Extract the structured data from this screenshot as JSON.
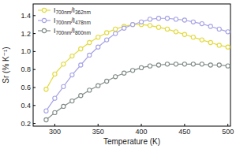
{
  "chart_data": {
    "type": "line",
    "x_label": "Temperature (K)",
    "y_label": "Sr (% K⁻¹)",
    "x": [
      290,
      300,
      310,
      320,
      330,
      340,
      350,
      360,
      370,
      380,
      390,
      400,
      410,
      420,
      430,
      440,
      450,
      460,
      470,
      480,
      490,
      500
    ],
    "series": [
      {
        "name": "I700nm/I362nm",
        "color": "#e2da3c",
        "marker": "circle",
        "values": [
          0.58,
          0.75,
          0.86,
          0.95,
          1.03,
          1.1,
          1.16,
          1.21,
          1.25,
          1.28,
          1.3,
          1.3,
          1.29,
          1.27,
          1.25,
          1.22,
          1.19,
          1.16,
          1.13,
          1.1,
          1.07,
          1.05
        ]
      },
      {
        "name": "I700nm/I478nm",
        "color": "#a7a4e6",
        "marker": "circle",
        "values": [
          0.34,
          0.48,
          0.61,
          0.74,
          0.85,
          0.96,
          1.05,
          1.13,
          1.2,
          1.26,
          1.3,
          1.33,
          1.36,
          1.37,
          1.37,
          1.36,
          1.35,
          1.33,
          1.31,
          1.28,
          1.25,
          1.22
        ]
      },
      {
        "name": "I700nm/I800nm",
        "color": "#808c86",
        "marker": "circle",
        "values": [
          0.24,
          0.32,
          0.39,
          0.45,
          0.51,
          0.57,
          0.62,
          0.67,
          0.72,
          0.76,
          0.79,
          0.82,
          0.84,
          0.85,
          0.86,
          0.86,
          0.86,
          0.86,
          0.86,
          0.85,
          0.85,
          0.84
        ]
      }
    ],
    "xlim": [
      275,
      503
    ],
    "ylim": [
      0.17,
      1.53
    ],
    "xticks": [
      300,
      350,
      400,
      450,
      500
    ],
    "yticks": [
      0.2,
      0.4,
      0.6,
      0.8,
      {
        "value": 1.0,
        "label": "1.0"
      },
      1.2,
      1.4
    ],
    "legend": "upper-left",
    "grid": false
  }
}
